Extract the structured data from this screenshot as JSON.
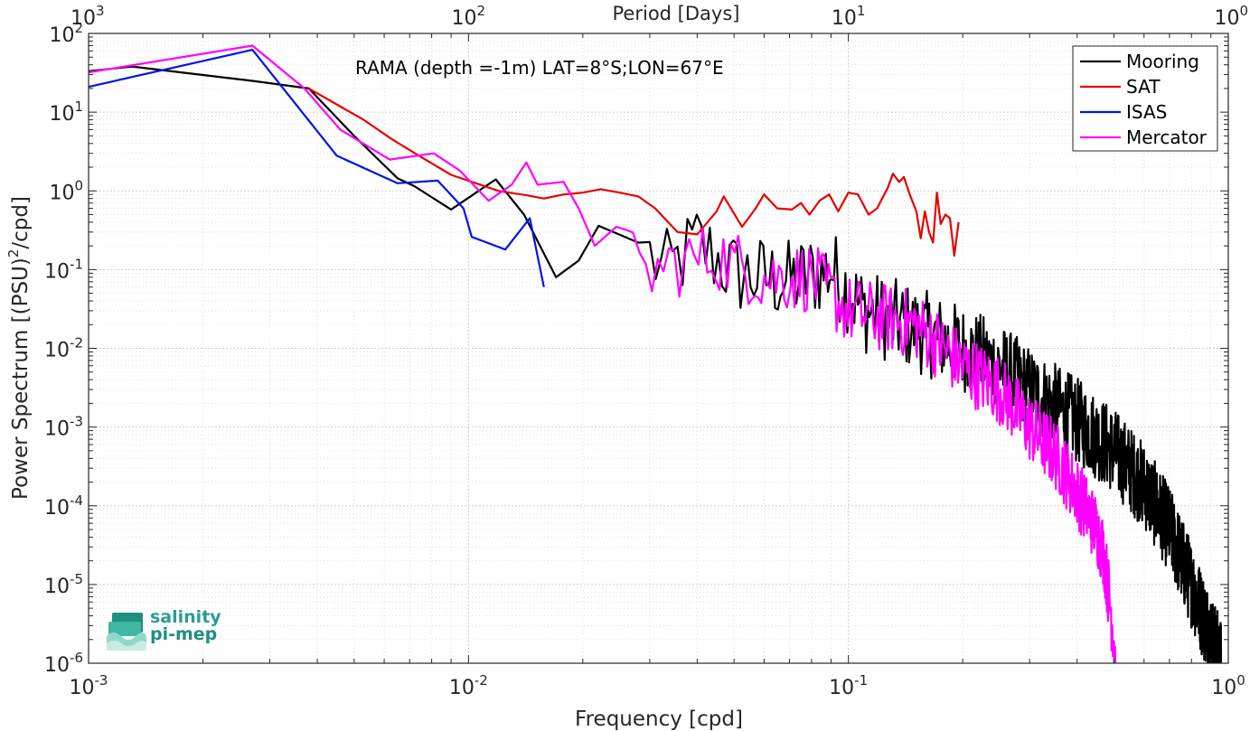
{
  "logo": {
    "line1": "salinity",
    "line2": "pi-mep",
    "color": "#2a9d8f"
  },
  "chart_data": {
    "type": "line",
    "scale": "log-log",
    "annotation": "RAMA (depth =-1m) LAT=8°S;LON=67°E",
    "xlabel": "Frequency [cpd]",
    "ylabel": "Power Spectrum [(PSU)²/cpd]",
    "ylabel_base": "Power Spectrum [(PSU)",
    "ylabel_exp": "2",
    "ylabel_tail": "/cpd]",
    "x2label": "Period [Days]",
    "xlim": [
      0.001,
      1
    ],
    "ylim": [
      1e-06,
      100
    ],
    "grid": true,
    "legend_position": "top-right",
    "x_ticks": [
      {
        "value": 0.001,
        "base": "10",
        "exp": "-3"
      },
      {
        "value": 0.01,
        "base": "10",
        "exp": "-2"
      },
      {
        "value": 0.1,
        "base": "10",
        "exp": "-1"
      },
      {
        "value": 1,
        "base": "10",
        "exp": "0"
      }
    ],
    "y_ticks": [
      {
        "value": 1e-06,
        "base": "10",
        "exp": "-6"
      },
      {
        "value": 1e-05,
        "base": "10",
        "exp": "-5"
      },
      {
        "value": 0.0001,
        "base": "10",
        "exp": "-4"
      },
      {
        "value": 0.001,
        "base": "10",
        "exp": "-3"
      },
      {
        "value": 0.01,
        "base": "10",
        "exp": "-2"
      },
      {
        "value": 0.1,
        "base": "10",
        "exp": "-1"
      },
      {
        "value": 1,
        "base": "10",
        "exp": "0"
      },
      {
        "value": 10,
        "base": "10",
        "exp": "1"
      },
      {
        "value": 100,
        "base": "10",
        "exp": "2"
      }
    ],
    "period_ticks": [
      {
        "period": 1000,
        "base": "10",
        "exp": "3"
      },
      {
        "period": 100,
        "base": "10",
        "exp": "2"
      },
      {
        "period": 10,
        "base": "10",
        "exp": "1"
      },
      {
        "period": 1,
        "base": "10",
        "exp": "0"
      }
    ],
    "series": [
      {
        "name": "Mooring",
        "color": "#000000",
        "kind": "noisy",
        "anchors": [
          [
            0.001,
            33
          ],
          [
            0.0013,
            38
          ],
          [
            0.0027,
            25
          ],
          [
            0.0038,
            20
          ],
          [
            0.005,
            5
          ],
          [
            0.0065,
            1.45
          ],
          [
            0.0072,
            1.15
          ],
          [
            0.009,
            0.58
          ],
          [
            0.0118,
            1.4
          ],
          [
            0.014,
            0.5
          ],
          [
            0.017,
            0.08
          ],
          [
            0.0195,
            0.13
          ],
          [
            0.022,
            0.36
          ],
          [
            0.028,
            0.22
          ],
          [
            0.033,
            0.09
          ],
          [
            0.04,
            0.22
          ],
          [
            0.05,
            0.09
          ],
          [
            0.07,
            0.07
          ],
          [
            0.09,
            0.1
          ],
          [
            0.11,
            0.03
          ],
          [
            0.14,
            0.02
          ],
          [
            0.2,
            0.01
          ],
          [
            0.25,
            0.006
          ],
          [
            0.3,
            0.003
          ],
          [
            0.4,
            0.0012
          ],
          [
            0.5,
            0.0005
          ],
          [
            0.6,
            0.00018
          ],
          [
            0.7,
            5e-05
          ],
          [
            0.8,
            1e-05
          ],
          [
            0.85,
            4.5e-06
          ],
          [
            0.93,
            1.5e-06
          ],
          [
            0.96,
            1e-06
          ]
        ],
        "noise_start": 0.03,
        "noise_amp": 0.55,
        "step": 0.0011
      },
      {
        "name": "SAT",
        "color": "#e60000",
        "kind": "points",
        "points": [
          [
            0.0038,
            20
          ],
          [
            0.0053,
            8
          ],
          [
            0.0063,
            4.5
          ],
          [
            0.0075,
            2.7
          ],
          [
            0.009,
            1.6
          ],
          [
            0.012,
            1.0
          ],
          [
            0.0142,
            0.88
          ],
          [
            0.0158,
            0.8
          ],
          [
            0.0178,
            0.9
          ],
          [
            0.02,
            0.95
          ],
          [
            0.0223,
            1.05
          ],
          [
            0.025,
            0.95
          ],
          [
            0.028,
            0.85
          ],
          [
            0.031,
            0.6
          ],
          [
            0.0355,
            0.3
          ],
          [
            0.04,
            0.28
          ],
          [
            0.045,
            0.55
          ],
          [
            0.047,
            0.85
          ],
          [
            0.0525,
            0.35
          ],
          [
            0.057,
            0.6
          ],
          [
            0.06,
            0.9
          ],
          [
            0.065,
            0.6
          ],
          [
            0.071,
            0.58
          ],
          [
            0.075,
            0.7
          ],
          [
            0.079,
            0.5
          ],
          [
            0.084,
            0.75
          ],
          [
            0.089,
            0.9
          ],
          [
            0.094,
            0.55
          ],
          [
            0.1,
            0.95
          ],
          [
            0.106,
            0.9
          ],
          [
            0.113,
            0.5
          ],
          [
            0.119,
            0.6
          ],
          [
            0.127,
            1.1
          ],
          [
            0.131,
            1.65
          ],
          [
            0.136,
            1.3
          ],
          [
            0.14,
            1.5
          ],
          [
            0.145,
            0.9
          ],
          [
            0.151,
            0.55
          ],
          [
            0.155,
            0.25
          ],
          [
            0.159,
            0.55
          ],
          [
            0.163,
            0.3
          ],
          [
            0.167,
            0.22
          ],
          [
            0.171,
            0.95
          ],
          [
            0.175,
            0.38
          ],
          [
            0.18,
            0.5
          ],
          [
            0.185,
            0.45
          ],
          [
            0.19,
            0.15
          ],
          [
            0.195,
            0.4
          ]
        ]
      },
      {
        "name": "ISAS",
        "color": "#0014e6",
        "kind": "points",
        "points": [
          [
            0.001,
            21
          ],
          [
            0.0027,
            62
          ],
          [
            0.0045,
            2.8
          ],
          [
            0.0065,
            1.25
          ],
          [
            0.0083,
            1.35
          ],
          [
            0.0097,
            0.6
          ],
          [
            0.0102,
            0.26
          ],
          [
            0.0125,
            0.18
          ],
          [
            0.0145,
            0.45
          ],
          [
            0.0158,
            0.06
          ]
        ]
      },
      {
        "name": "Mercator",
        "color": "#ff00ff",
        "kind": "noisy",
        "anchors": [
          [
            0.001,
            32
          ],
          [
            0.0027,
            70
          ],
          [
            0.0037,
            20
          ],
          [
            0.0046,
            6
          ],
          [
            0.0062,
            2.5
          ],
          [
            0.0081,
            3.0
          ],
          [
            0.0095,
            1.8
          ],
          [
            0.0113,
            0.75
          ],
          [
            0.013,
            1.2
          ],
          [
            0.0142,
            2.3
          ],
          [
            0.0152,
            1.2
          ],
          [
            0.0178,
            1.3
          ],
          [
            0.0195,
            0.6
          ],
          [
            0.0215,
            0.2
          ],
          [
            0.0245,
            0.35
          ],
          [
            0.028,
            0.08
          ],
          [
            0.035,
            0.12
          ],
          [
            0.045,
            0.15
          ],
          [
            0.06,
            0.08
          ],
          [
            0.08,
            0.08
          ],
          [
            0.1,
            0.03
          ],
          [
            0.12,
            0.025
          ],
          [
            0.15,
            0.02
          ],
          [
            0.2,
            0.006
          ],
          [
            0.25,
            0.003
          ],
          [
            0.3,
            0.001
          ],
          [
            0.35,
            0.00045
          ],
          [
            0.4,
            0.00015
          ],
          [
            0.45,
            5e-05
          ],
          [
            0.47,
            2.5e-05
          ],
          [
            0.49,
            5e-06
          ],
          [
            0.5,
            2e-06
          ],
          [
            0.505,
            1e-06
          ]
        ],
        "noise_start": 0.026,
        "noise_amp": 0.45,
        "step": 0.0011
      }
    ]
  }
}
